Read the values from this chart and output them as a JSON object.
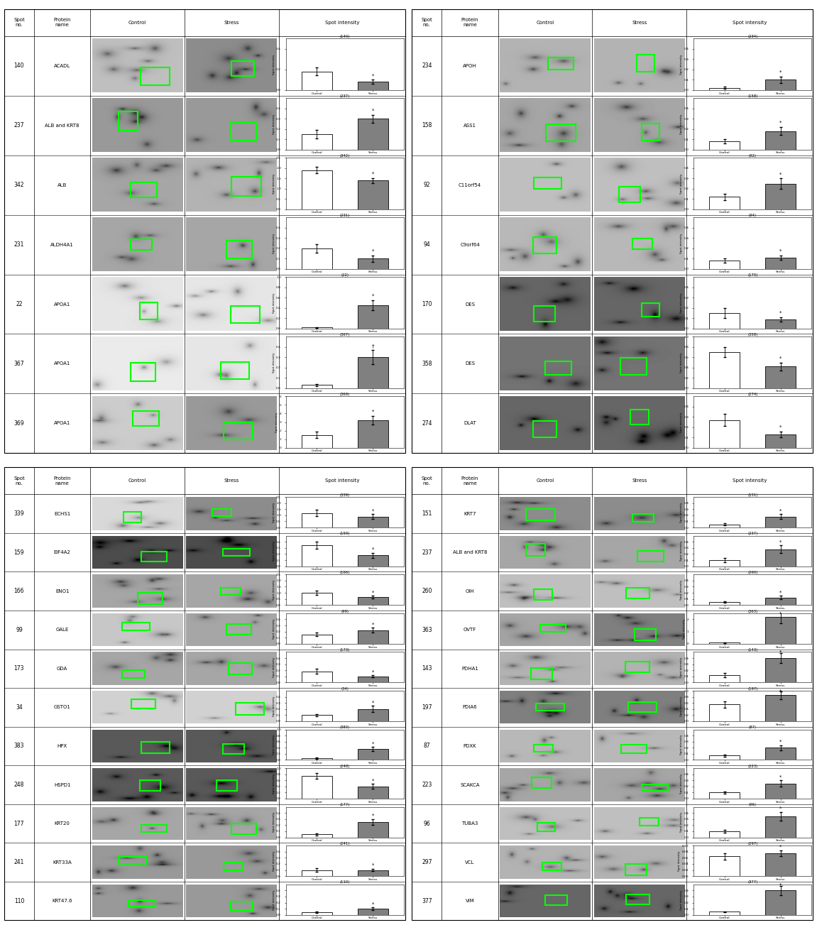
{
  "panel_top_left": {
    "rows": [
      {
        "spot": "140",
        "protein": "ACADL",
        "ctrl_val": 0.18,
        "ctrl_err": 0.04,
        "stress_val": 0.08,
        "stress_err": 0.02,
        "ymax": 0.5,
        "yticks": [
          0.0,
          0.2,
          0.4
        ],
        "symbol": "*",
        "dagger": false,
        "ctrl_bg": 0.75,
        "str_bg": 0.55
      },
      {
        "spot": "237",
        "protein": "ALB and KRT8",
        "ctrl_val": 0.15,
        "ctrl_err": 0.04,
        "stress_val": 0.3,
        "stress_err": 0.04,
        "ymax": 0.5,
        "yticks": [
          0.0,
          0.1,
          0.2,
          0.3,
          0.4
        ],
        "symbol": "*",
        "dagger": false,
        "ctrl_bg": 0.6,
        "str_bg": 0.6
      },
      {
        "spot": "342",
        "protein": "ALB",
        "ctrl_val": 1.9,
        "ctrl_err": 0.15,
        "stress_val": 1.4,
        "stress_err": 0.12,
        "ymax": 2.5,
        "yticks": [
          0.0,
          0.5,
          1.0,
          1.5,
          2.0,
          2.5
        ],
        "symbol": "*",
        "dagger": false,
        "ctrl_bg": 0.65,
        "str_bg": 0.7
      },
      {
        "spot": "231",
        "protein": "ALDH4A1",
        "ctrl_val": 0.2,
        "ctrl_err": 0.04,
        "stress_val": 0.1,
        "stress_err": 0.03,
        "ymax": 0.5,
        "yticks": [
          0.0,
          0.1,
          0.2,
          0.3,
          0.4
        ],
        "symbol": "*",
        "dagger": false,
        "ctrl_bg": 0.65,
        "str_bg": 0.65
      },
      {
        "spot": "22",
        "protein": "APOA1",
        "ctrl_val": 0.02,
        "ctrl_err": 0.01,
        "stress_val": 0.45,
        "stress_err": 0.1,
        "ymax": 1.0,
        "yticks": [
          0.0,
          0.2,
          0.4,
          0.6,
          0.8,
          1.0
        ],
        "symbol": "*",
        "dagger": false,
        "ctrl_bg": 0.9,
        "str_bg": 0.9
      },
      {
        "spot": "367",
        "protein": "APOA1",
        "ctrl_val": 0.03,
        "ctrl_err": 0.01,
        "stress_val": 0.3,
        "stress_err": 0.07,
        "ymax": 0.5,
        "yticks": [
          0.0,
          0.1,
          0.2,
          0.3,
          0.4
        ],
        "symbol": "†",
        "dagger": true,
        "ctrl_bg": 0.92,
        "str_bg": 0.9
      },
      {
        "spot": "369",
        "protein": "APOA1",
        "ctrl_val": 1.5,
        "ctrl_err": 0.4,
        "stress_val": 3.2,
        "stress_err": 0.5,
        "ymax": 6.0,
        "yticks": [
          0,
          1,
          2,
          3,
          4,
          5,
          6
        ],
        "symbol": "*",
        "dagger": false,
        "ctrl_bg": 0.8,
        "str_bg": 0.6
      }
    ]
  },
  "panel_top_right": {
    "rows": [
      {
        "spot": "234",
        "protein": "APOH",
        "ctrl_val": 0.02,
        "ctrl_err": 0.01,
        "stress_val": 0.1,
        "stress_err": 0.03,
        "ymax": 0.5,
        "yticks": [
          0.0,
          0.1,
          0.2,
          0.3,
          0.4
        ],
        "symbol": "*",
        "dagger": false,
        "ctrl_bg": 0.7,
        "str_bg": 0.7
      },
      {
        "spot": "158",
        "protein": "ASS1",
        "ctrl_val": 0.08,
        "ctrl_err": 0.02,
        "stress_val": 0.18,
        "stress_err": 0.04,
        "ymax": 0.5,
        "yticks": [
          0.0,
          0.1,
          0.2,
          0.3,
          0.4
        ],
        "symbol": "*",
        "dagger": false,
        "ctrl_bg": 0.65,
        "str_bg": 0.65
      },
      {
        "spot": "92",
        "protein": "C11orf54",
        "ctrl_val": 0.12,
        "ctrl_err": 0.03,
        "stress_val": 0.25,
        "stress_err": 0.05,
        "ymax": 0.5,
        "yticks": [
          0.0,
          0.1,
          0.2,
          0.3,
          0.4
        ],
        "symbol": "*",
        "dagger": false,
        "ctrl_bg": 0.75,
        "str_bg": 0.75
      },
      {
        "spot": "94",
        "protein": "C9orf64",
        "ctrl_val": 0.08,
        "ctrl_err": 0.02,
        "stress_val": 0.11,
        "stress_err": 0.02,
        "ymax": 0.5,
        "yticks": [
          0.0,
          0.1,
          0.2,
          0.3,
          0.4
        ],
        "symbol": "*",
        "dagger": false,
        "ctrl_bg": 0.72,
        "str_bg": 0.72
      },
      {
        "spot": "170",
        "protein": "DES",
        "ctrl_val": 0.15,
        "ctrl_err": 0.05,
        "stress_val": 0.09,
        "stress_err": 0.02,
        "ymax": 0.5,
        "yticks": [
          0.0,
          0.1,
          0.2,
          0.3,
          0.4
        ],
        "symbol": "*",
        "dagger": false,
        "ctrl_bg": 0.4,
        "str_bg": 0.4
      },
      {
        "spot": "358",
        "protein": "DES",
        "ctrl_val": 0.7,
        "ctrl_err": 0.1,
        "stress_val": 0.42,
        "stress_err": 0.08,
        "ymax": 1.0,
        "yticks": [
          0.0,
          0.2,
          0.4,
          0.6,
          0.8,
          1.0
        ],
        "symbol": "*",
        "dagger": false,
        "ctrl_bg": 0.45,
        "str_bg": 0.45
      },
      {
        "spot": "274",
        "protein": "DLAT",
        "ctrl_val": 0.27,
        "ctrl_err": 0.06,
        "stress_val": 0.13,
        "stress_err": 0.03,
        "ymax": 0.5,
        "yticks": [
          0.0,
          0.1,
          0.2,
          0.3,
          0.4
        ],
        "symbol": "*",
        "dagger": false,
        "ctrl_bg": 0.4,
        "str_bg": 0.4
      }
    ]
  },
  "panel_bottom_left": {
    "rows": [
      {
        "spot": "339",
        "protein": "ECHS1",
        "ctrl_val": 1.2,
        "ctrl_err": 0.25,
        "stress_val": 0.9,
        "stress_err": 0.2,
        "ymax": 2.5,
        "yticks": [
          0.0,
          0.5,
          1.0,
          1.5,
          2.0,
          2.5
        ],
        "symbol": "*",
        "dagger": false,
        "ctrl_bg": 0.85,
        "str_bg": 0.55
      },
      {
        "spot": "159",
        "protein": "EIF4A2",
        "ctrl_val": 0.35,
        "ctrl_err": 0.06,
        "stress_val": 0.18,
        "stress_err": 0.04,
        "ymax": 0.5,
        "yticks": [
          0.0,
          0.1,
          0.2,
          0.3,
          0.4
        ],
        "symbol": "*",
        "dagger": false,
        "ctrl_bg": 0.3,
        "str_bg": 0.3
      },
      {
        "spot": "166",
        "protein": "ENO1",
        "ctrl_val": 1.0,
        "ctrl_err": 0.15,
        "stress_val": 0.65,
        "stress_err": 0.1,
        "ymax": 2.5,
        "yticks": [
          0.0,
          0.5,
          1.0,
          1.5,
          2.0,
          2.5
        ],
        "symbol": "*",
        "dagger": false,
        "ctrl_bg": 0.65,
        "str_bg": 0.65
      },
      {
        "spot": "99",
        "protein": "GALE",
        "ctrl_val": 0.15,
        "ctrl_err": 0.03,
        "stress_val": 0.22,
        "stress_err": 0.04,
        "ymax": 0.5,
        "yticks": [
          0.0,
          0.1,
          0.2,
          0.3,
          0.4
        ],
        "symbol": "*",
        "dagger": false,
        "ctrl_bg": 0.78,
        "str_bg": 0.65
      },
      {
        "spot": "173",
        "protein": "GDA",
        "ctrl_val": 0.18,
        "ctrl_err": 0.04,
        "stress_val": 0.1,
        "stress_err": 0.02,
        "ymax": 0.5,
        "yticks": [
          0.0,
          0.1,
          0.2,
          0.3,
          0.4
        ],
        "symbol": "*",
        "dagger": false,
        "ctrl_bg": 0.65,
        "str_bg": 0.65
      },
      {
        "spot": "34",
        "protein": "GSTO1",
        "ctrl_val": 0.1,
        "ctrl_err": 0.02,
        "stress_val": 0.2,
        "stress_err": 0.05,
        "ymax": 0.5,
        "yticks": [
          0.0,
          0.1,
          0.2,
          0.3,
          0.4
        ],
        "symbol": "*",
        "dagger": false,
        "ctrl_bg": 0.82,
        "str_bg": 0.82
      },
      {
        "spot": "383",
        "protein": "HPX",
        "ctrl_val": 0.05,
        "ctrl_err": 0.02,
        "stress_val": 0.35,
        "stress_err": 0.07,
        "ymax": 1.0,
        "yticks": [
          0.0,
          0.2,
          0.4,
          0.6,
          0.8,
          1.0
        ],
        "symbol": "*",
        "dagger": false,
        "ctrl_bg": 0.35,
        "str_bg": 0.35
      },
      {
        "spot": "248",
        "protein": "HSPD1",
        "ctrl_val": 0.75,
        "ctrl_err": 0.1,
        "stress_val": 0.4,
        "stress_err": 0.08,
        "ymax": 1.0,
        "yticks": [
          0.0,
          0.2,
          0.4,
          0.6,
          0.8,
          1.0
        ],
        "symbol": "*",
        "dagger": false,
        "ctrl_bg": 0.35,
        "str_bg": 0.35
      },
      {
        "spot": "177",
        "protein": "KRT20",
        "ctrl_val": 0.05,
        "ctrl_err": 0.02,
        "stress_val": 0.25,
        "stress_err": 0.05,
        "ymax": 0.5,
        "yticks": [
          0.0,
          0.1,
          0.2,
          0.3,
          0.4
        ],
        "symbol": "*",
        "dagger": false,
        "ctrl_bg": 0.65,
        "str_bg": 0.65
      },
      {
        "spot": "241",
        "protein": "KRT33A",
        "ctrl_val": 0.1,
        "ctrl_err": 0.03,
        "stress_val": 0.1,
        "stress_err": 0.02,
        "ymax": 0.5,
        "yticks": [
          0.0,
          0.1,
          0.2,
          0.3,
          0.4
        ],
        "symbol": "*",
        "dagger": false,
        "ctrl_bg": 0.6,
        "str_bg": 0.6
      },
      {
        "spot": "110",
        "protein": "KRT47.6",
        "ctrl_val": 0.04,
        "ctrl_err": 0.01,
        "stress_val": 0.1,
        "stress_err": 0.02,
        "ymax": 0.5,
        "yticks": [
          0.0,
          0.1,
          0.2,
          0.3,
          0.4
        ],
        "symbol": "*",
        "dagger": false,
        "ctrl_bg": 0.6,
        "str_bg": 0.6
      }
    ]
  },
  "panel_bottom_right": {
    "rows": [
      {
        "spot": "151",
        "protein": "KRT7",
        "ctrl_val": 0.05,
        "ctrl_err": 0.02,
        "stress_val": 0.18,
        "stress_err": 0.04,
        "ymax": 0.5,
        "yticks": [
          0.0,
          0.1,
          0.2,
          0.3,
          0.4
        ],
        "symbol": "*",
        "dagger": false,
        "ctrl_bg": 0.55,
        "str_bg": 0.55
      },
      {
        "spot": "237",
        "protein": "ALB and KRT8",
        "ctrl_val": 0.1,
        "ctrl_err": 0.03,
        "stress_val": 0.28,
        "stress_err": 0.06,
        "ymax": 0.5,
        "yticks": [
          0.0,
          0.1,
          0.2,
          0.3,
          0.4
        ],
        "symbol": "*",
        "dagger": false,
        "ctrl_bg": 0.65,
        "str_bg": 0.65
      },
      {
        "spot": "260",
        "protein": "OIH",
        "ctrl_val": 0.05,
        "ctrl_err": 0.01,
        "stress_val": 0.12,
        "stress_err": 0.03,
        "ymax": 0.5,
        "yticks": [
          0.0,
          0.1,
          0.2,
          0.3,
          0.4
        ],
        "symbol": "*",
        "dagger": false,
        "ctrl_bg": 0.75,
        "str_bg": 0.75
      },
      {
        "spot": "363",
        "protein": "OVTF",
        "ctrl_val": 0.08,
        "ctrl_err": 0.02,
        "stress_val": 2.2,
        "stress_err": 0.5,
        "ymax": 2.5,
        "yticks": [
          0,
          1,
          2
        ],
        "symbol": "*",
        "dagger": false,
        "ctrl_bg": 0.65,
        "str_bg": 0.5
      },
      {
        "spot": "143",
        "protein": "PDHA1",
        "ctrl_val": 0.12,
        "ctrl_err": 0.03,
        "stress_val": 0.4,
        "stress_err": 0.08,
        "ymax": 0.5,
        "yticks": [
          0.0,
          0.1,
          0.2,
          0.3,
          0.4
        ],
        "symbol": "*",
        "dagger": false,
        "ctrl_bg": 0.7,
        "str_bg": 0.7
      },
      {
        "spot": "197",
        "protein": "PDIA6",
        "ctrl_val": 0.55,
        "ctrl_err": 0.1,
        "stress_val": 0.85,
        "stress_err": 0.12,
        "ymax": 1.0,
        "yticks": [
          0.0,
          0.2,
          0.4,
          0.6,
          0.8,
          1.0
        ],
        "symbol": "*",
        "dagger": false,
        "ctrl_bg": 0.5,
        "str_bg": 0.5
      },
      {
        "spot": "87",
        "protein": "PDXK",
        "ctrl_val": 0.07,
        "ctrl_err": 0.02,
        "stress_val": 0.2,
        "stress_err": 0.04,
        "ymax": 0.5,
        "yticks": [
          0.0,
          0.1,
          0.2,
          0.3,
          0.4
        ],
        "symbol": "*",
        "dagger": false,
        "ctrl_bg": 0.72,
        "str_bg": 0.72
      },
      {
        "spot": "223",
        "protein": "SCAKCA",
        "ctrl_val": 0.1,
        "ctrl_err": 0.02,
        "stress_val": 0.25,
        "stress_err": 0.05,
        "ymax": 0.5,
        "yticks": [
          0.0,
          0.1,
          0.2,
          0.3,
          0.4
        ],
        "symbol": "*",
        "dagger": false,
        "ctrl_bg": 0.65,
        "str_bg": 0.65
      },
      {
        "spot": "96",
        "protein": "TUBA3",
        "ctrl_val": 0.1,
        "ctrl_err": 0.02,
        "stress_val": 0.35,
        "stress_err": 0.07,
        "ymax": 0.5,
        "yticks": [
          0.0,
          0.1,
          0.2,
          0.3,
          0.4
        ],
        "symbol": "*",
        "dagger": false,
        "ctrl_bg": 0.75,
        "str_bg": 0.75
      },
      {
        "spot": "297",
        "protein": "VCL",
        "ctrl_val": 0.065,
        "ctrl_err": 0.01,
        "stress_val": 0.075,
        "stress_err": 0.01,
        "ymax": 0.1,
        "yticks": [
          0.0,
          0.02,
          0.04,
          0.06,
          0.08,
          0.1
        ],
        "symbol": "*",
        "dagger": false,
        "ctrl_bg": 0.7,
        "str_bg": 0.7
      },
      {
        "spot": "377",
        "protein": "VIM",
        "ctrl_val": 0.05,
        "ctrl_err": 0.01,
        "stress_val": 0.4,
        "stress_err": 0.08,
        "ymax": 0.5,
        "yticks": [
          0.0,
          0.1,
          0.2,
          0.3,
          0.4
        ],
        "symbol": "*",
        "dagger": false,
        "ctrl_bg": 0.4,
        "str_bg": 0.4
      }
    ]
  }
}
